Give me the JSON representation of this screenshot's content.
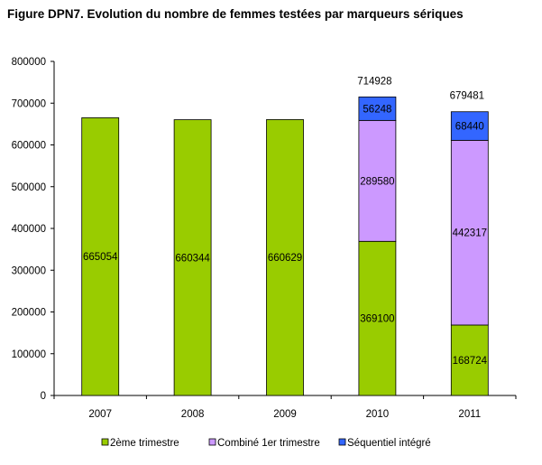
{
  "title": "Figure DPN7. Evolution du nombre de femmes testées par marqueurs sériques",
  "chart_data": {
    "type": "bar",
    "stacked": true,
    "title": "Figure DPN7. Evolution du nombre de femmes testées par marqueurs sériques",
    "categories": [
      "2007",
      "2008",
      "2009",
      "2010",
      "2011"
    ],
    "series": [
      {
        "name": "2ème trimestre",
        "color": "#99cc00",
        "values": [
          665054,
          660344,
          660629,
          369100,
          168724
        ]
      },
      {
        "name": "Combiné 1er trimestre",
        "color": "#cc99ff",
        "values": [
          null,
          null,
          null,
          289580,
          442317
        ]
      },
      {
        "name": "Séquentiel intégré",
        "color": "#3366ff",
        "values": [
          null,
          null,
          null,
          56248,
          68440
        ]
      }
    ],
    "totals": [
      null,
      null,
      null,
      "714928",
      "679481"
    ],
    "yticks": [
      "0",
      "100000",
      "200000",
      "300000",
      "400000",
      "500000",
      "600000",
      "700000",
      "800000"
    ],
    "ylim": [
      0,
      800000
    ],
    "grid": false,
    "legend_position": "bottom"
  }
}
